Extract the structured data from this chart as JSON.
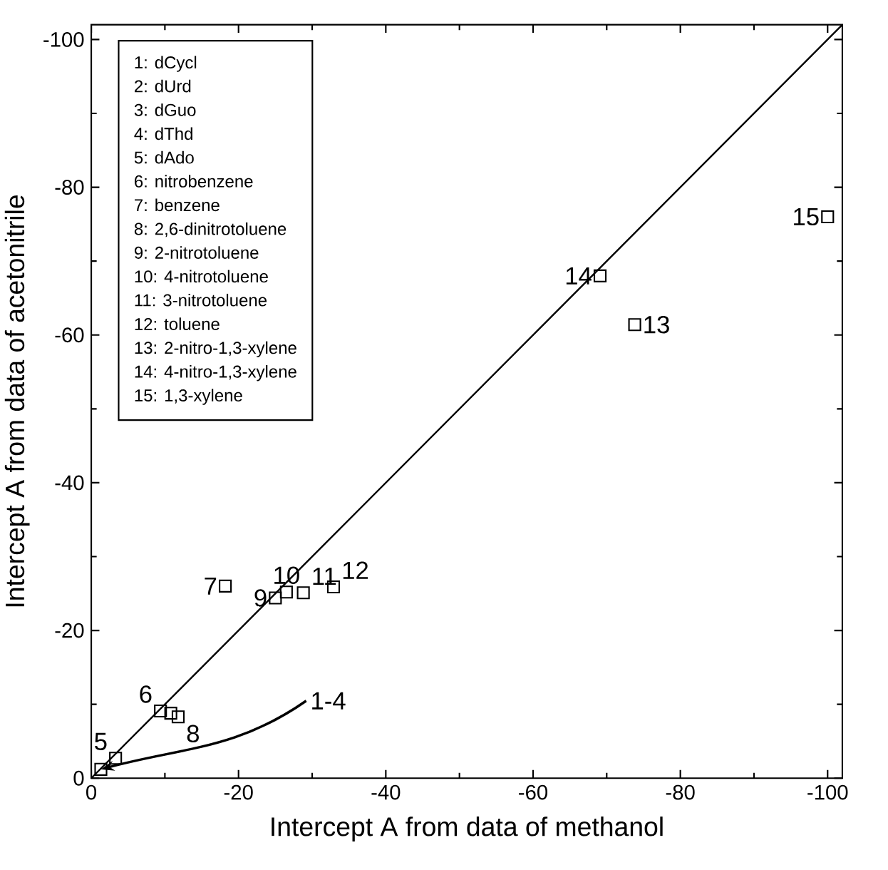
{
  "chart_data": {
    "type": "scatter",
    "xlabel": "Intercept A from data of methanol",
    "ylabel": "Intercept A from data of acetonitrile",
    "xlim": [
      0,
      -102
    ],
    "ylim": [
      0,
      -102
    ],
    "xticks": [
      0,
      -20,
      -40,
      -60,
      -80,
      -100
    ],
    "yticks": [
      0,
      -20,
      -40,
      -60,
      -80,
      -100
    ],
    "grid": false,
    "series": [
      {
        "marker": "square",
        "color": "#000000",
        "x": [
          -1.3,
          -3.3,
          -9.4,
          -10.8,
          -11.8,
          -18.2,
          -25.0,
          -26.5,
          -28.8,
          -32.9,
          -69.1,
          -73.8,
          -100
        ],
        "values": [
          -1.2,
          -2.7,
          -9.1,
          -8.8,
          -8.3,
          -26.0,
          -24.4,
          -25.2,
          -25.1,
          -25.9,
          -68.0,
          -61.4,
          -76.0
        ]
      },
      {
        "type": "line",
        "color": "#000000",
        "x": [
          0,
          -102
        ],
        "values": [
          0,
          -102
        ]
      }
    ],
    "annotations": [
      "1: dCycl",
      "2: dUrd",
      "3: dGuo",
      "4: dThd",
      "5: dAdo",
      "6: nitrobenzene",
      "7: benzene",
      "8: 2,6-dinitrotoluene",
      "9: 2-nitrotoluene",
      "10: 4-nitrotoluene",
      "11: 3-nitrotoluene",
      "12: toluene",
      "13: 2-nitro-1,3-xylene",
      "14: 4-nitro-1,3-xylene",
      "15: 1,3-xylene",
      {
        "text": "5",
        "x": -3.3,
        "y": -2.7
      },
      {
        "text": "6",
        "x": -9.4,
        "y": -9.1
      },
      {
        "text": "8",
        "x": -11.8,
        "y": -8.3
      },
      {
        "text": "7",
        "x": -18.2,
        "y": -26.0
      },
      {
        "text": "9",
        "x": -25.0,
        "y": -24.4
      },
      {
        "text": "10",
        "x": -26.5,
        "y": -25.2
      },
      {
        "text": "11",
        "x": -28.8,
        "y": -25.1
      },
      {
        "text": "12",
        "x": -32.9,
        "y": -25.9
      },
      {
        "text": "13",
        "x": -73.8,
        "y": -61.4
      },
      {
        "text": "14",
        "x": -69.1,
        "y": -68.0
      },
      {
        "text": "15",
        "x": -100,
        "y": -76.0
      },
      {
        "text": "1-4",
        "x": -1.3,
        "y": -1.2
      }
    ]
  }
}
